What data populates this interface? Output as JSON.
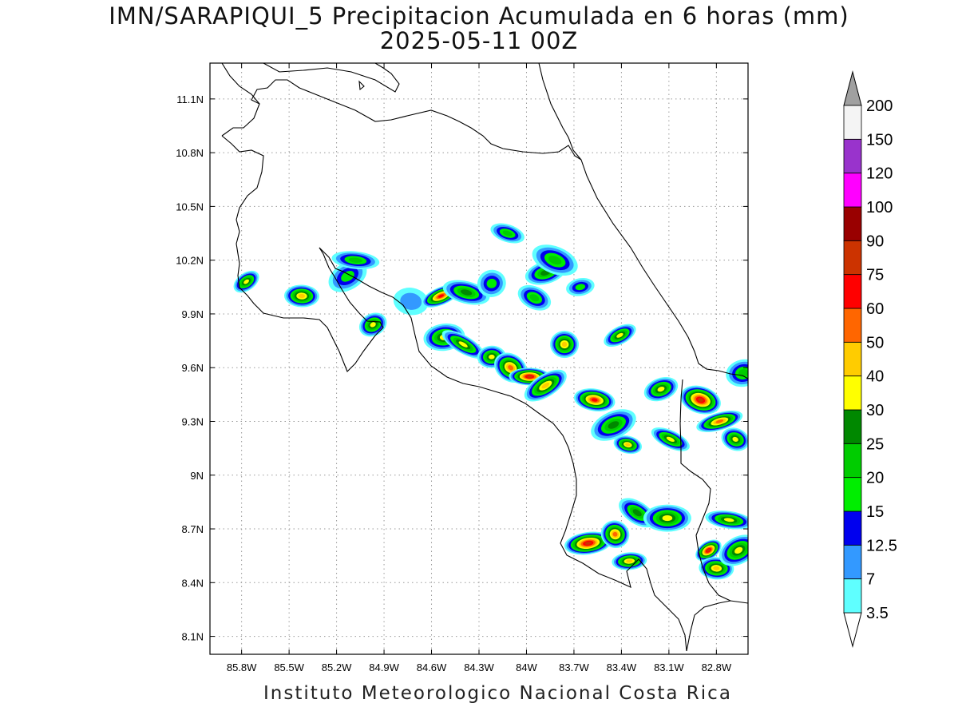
{
  "title": "IMN/SARAPIQUI_5 Precipitacion Acumulada en 6 horas (mm)",
  "subtitle": "2025-05-11 00Z",
  "footer": "Instituto Meteorologico Nacional Costa Rica",
  "map": {
    "lon_range": [
      -86.0,
      -82.6
    ],
    "lat_range": [
      8.0,
      11.3
    ],
    "lon_ticks": [
      {
        "v": -85.8,
        "label": "85.8W"
      },
      {
        "v": -85.5,
        "label": "85.5W"
      },
      {
        "v": -85.2,
        "label": "85.2W"
      },
      {
        "v": -84.9,
        "label": "84.9W"
      },
      {
        "v": -84.6,
        "label": "84.6W"
      },
      {
        "v": -84.3,
        "label": "84.3W"
      },
      {
        "v": -84.0,
        "label": "84W"
      },
      {
        "v": -83.7,
        "label": "83.7W"
      },
      {
        "v": -83.4,
        "label": "83.4W"
      },
      {
        "v": -83.1,
        "label": "83.1W"
      },
      {
        "v": -82.8,
        "label": "82.8W"
      }
    ],
    "lat_ticks": [
      {
        "v": 8.1,
        "label": "8.1N"
      },
      {
        "v": 8.4,
        "label": "8.4N"
      },
      {
        "v": 8.7,
        "label": "8.7N"
      },
      {
        "v": 9.0,
        "label": "9N"
      },
      {
        "v": 9.3,
        "label": "9.3N"
      },
      {
        "v": 9.6,
        "label": "9.6N"
      },
      {
        "v": 9.9,
        "label": "9.9N"
      },
      {
        "v": 10.2,
        "label": "10.2N"
      },
      {
        "v": 10.5,
        "label": "10.5N"
      },
      {
        "v": 10.8,
        "label": "10.8N"
      },
      {
        "v": 11.1,
        "label": "11.1N"
      }
    ],
    "gridlines": "dotted",
    "precip_cells": [
      {
        "lon": -85.77,
        "lat": 10.08,
        "peak": 35
      },
      {
        "lon": -85.42,
        "lat": 10.0,
        "peak": 40
      },
      {
        "lon": -85.13,
        "lat": 10.11,
        "peak": 15
      },
      {
        "lon": -85.08,
        "lat": 10.2,
        "peak": 20
      },
      {
        "lon": -84.97,
        "lat": 9.84,
        "peak": 35
      },
      {
        "lon": -84.73,
        "lat": 9.97,
        "peak": 10
      },
      {
        "lon": -84.54,
        "lat": 10.0,
        "peak": 60
      },
      {
        "lon": -84.38,
        "lat": 10.02,
        "peak": 25
      },
      {
        "lon": -84.22,
        "lat": 10.07,
        "peak": 15
      },
      {
        "lon": -84.12,
        "lat": 10.35,
        "peak": 20
      },
      {
        "lon": -83.88,
        "lat": 10.13,
        "peak": 25
      },
      {
        "lon": -83.82,
        "lat": 10.2,
        "peak": 20
      },
      {
        "lon": -83.66,
        "lat": 10.05,
        "peak": 15
      },
      {
        "lon": -83.95,
        "lat": 9.99,
        "peak": 20
      },
      {
        "lon": -84.52,
        "lat": 9.77,
        "peak": 30
      },
      {
        "lon": -84.4,
        "lat": 9.73,
        "peak": 30
      },
      {
        "lon": -84.22,
        "lat": 9.66,
        "peak": 35
      },
      {
        "lon": -84.1,
        "lat": 9.6,
        "peak": 50
      },
      {
        "lon": -83.98,
        "lat": 9.55,
        "peak": 75
      },
      {
        "lon": -83.88,
        "lat": 9.5,
        "peak": 40
      },
      {
        "lon": -83.76,
        "lat": 9.73,
        "peak": 40
      },
      {
        "lon": -83.41,
        "lat": 9.78,
        "peak": 35
      },
      {
        "lon": -83.57,
        "lat": 9.42,
        "peak": 60
      },
      {
        "lon": -83.45,
        "lat": 9.28,
        "peak": 25
      },
      {
        "lon": -83.36,
        "lat": 9.17,
        "peak": 40
      },
      {
        "lon": -83.15,
        "lat": 9.48,
        "peak": 30
      },
      {
        "lon": -82.9,
        "lat": 9.42,
        "peak": 75
      },
      {
        "lon": -82.78,
        "lat": 9.3,
        "peak": 50
      },
      {
        "lon": -82.68,
        "lat": 9.2,
        "peak": 35
      },
      {
        "lon": -82.63,
        "lat": 9.57,
        "peak": 20
      },
      {
        "lon": -83.09,
        "lat": 9.2,
        "peak": 30
      },
      {
        "lon": -83.61,
        "lat": 8.62,
        "peak": 75
      },
      {
        "lon": -83.44,
        "lat": 8.67,
        "peak": 50
      },
      {
        "lon": -83.35,
        "lat": 8.52,
        "peak": 40
      },
      {
        "lon": -83.3,
        "lat": 8.79,
        "peak": 25
      },
      {
        "lon": -83.11,
        "lat": 8.76,
        "peak": 30
      },
      {
        "lon": -82.85,
        "lat": 8.58,
        "peak": 75
      },
      {
        "lon": -82.8,
        "lat": 8.48,
        "peak": 40
      },
      {
        "lon": -82.66,
        "lat": 8.58,
        "peak": 30
      },
      {
        "lon": -82.72,
        "lat": 8.75,
        "peak": 30
      }
    ]
  },
  "colorbar": {
    "levels": [
      "3.5",
      "7",
      "12.5",
      "15",
      "20",
      "25",
      "30",
      "40",
      "50",
      "60",
      "75",
      "90",
      "100",
      "120",
      "150",
      "200"
    ],
    "colors": [
      "#5fffff",
      "#3399ff",
      "#0000ee",
      "#00ee00",
      "#00cc00",
      "#008800",
      "#ffff00",
      "#ffcc00",
      "#ff6600",
      "#ff0000",
      "#cc3300",
      "#990000",
      "#ff00ff",
      "#9933cc",
      "#f4f4f4"
    ],
    "top_arrow_color": "#a0a0a0",
    "bottom_arrow_color": "#ffffff"
  }
}
